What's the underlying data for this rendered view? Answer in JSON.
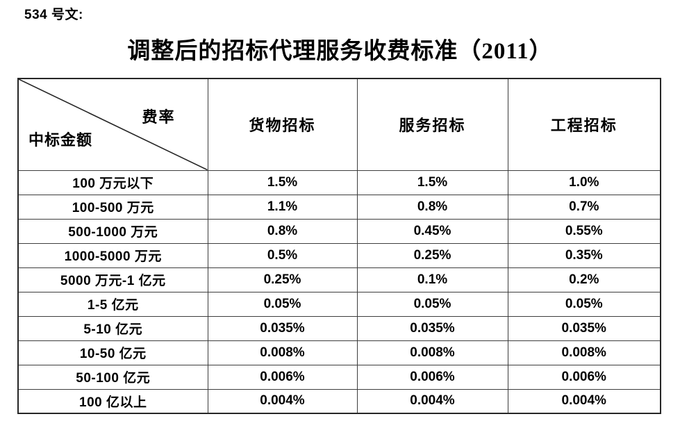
{
  "doc_number": "534 号文:",
  "title": "调整后的招标代理服务收费标准（2011）",
  "table": {
    "corner": {
      "top_right": "费率",
      "bottom_left": "中标金额"
    },
    "columns": [
      "货物招标",
      "服务招标",
      "工程招标"
    ],
    "rows": [
      {
        "label": "100 万元以下",
        "values": [
          "1.5%",
          "1.5%",
          "1.0%"
        ]
      },
      {
        "label": "100-500 万元",
        "values": [
          "1.1%",
          "0.8%",
          "0.7%"
        ]
      },
      {
        "label": "500-1000 万元",
        "values": [
          "0.8%",
          "0.45%",
          "0.55%"
        ]
      },
      {
        "label": "1000-5000 万元",
        "values": [
          "0.5%",
          "0.25%",
          "0.35%"
        ]
      },
      {
        "label": "5000 万元-1 亿元",
        "values": [
          "0.25%",
          "0.1%",
          "0.2%"
        ]
      },
      {
        "label": "1-5 亿元",
        "values": [
          "0.05%",
          "0.05%",
          "0.05%"
        ]
      },
      {
        "label": "5-10 亿元",
        "values": [
          "0.035%",
          "0.035%",
          "0.035%"
        ]
      },
      {
        "label": "10-50 亿元",
        "values": [
          "0.008%",
          "0.008%",
          "0.008%"
        ]
      },
      {
        "label": "50-100 亿元",
        "values": [
          "0.006%",
          "0.006%",
          "0.006%"
        ]
      },
      {
        "label": "100 亿以上",
        "values": [
          "0.004%",
          "0.004%",
          "0.004%"
        ]
      }
    ]
  },
  "colors": {
    "text": "#000000",
    "border": "#3d3d3d",
    "outer_border": "#262626",
    "background": "#ffffff"
  }
}
